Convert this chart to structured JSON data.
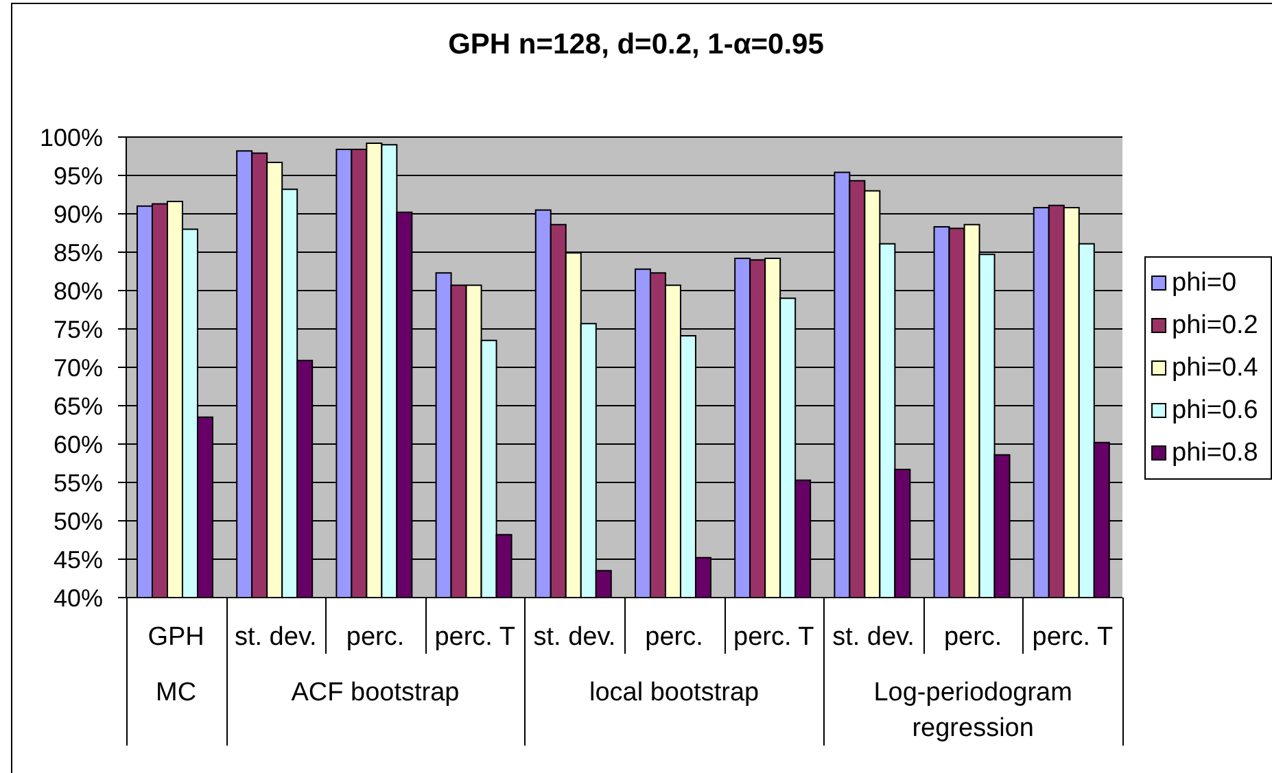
{
  "chart_data": {
    "type": "bar",
    "title": "GPH n=128, d=0.2, 1-α=0.95",
    "categories": [
      "GPH",
      "st. dev.",
      "perc.",
      "perc. T",
      "st. dev.",
      "perc.",
      "perc. T",
      "st. dev.",
      "perc.",
      "perc. T"
    ],
    "series": [
      {
        "name": "phi=0",
        "color": "#9999ff",
        "values": [
          91.0,
          98.2,
          98.4,
          82.3,
          90.5,
          82.8,
          84.2,
          95.4,
          88.3,
          90.8
        ]
      },
      {
        "name": "phi=0.2",
        "color": "#993366",
        "values": [
          91.3,
          97.9,
          98.4,
          80.7,
          88.6,
          82.3,
          84.0,
          94.3,
          88.1,
          91.1
        ]
      },
      {
        "name": "phi=0.4",
        "color": "#ffffcc",
        "values": [
          91.6,
          96.7,
          99.2,
          80.7,
          84.9,
          80.7,
          84.2,
          93.0,
          88.6,
          90.8
        ]
      },
      {
        "name": "phi=0.6",
        "color": "#ccffff",
        "values": [
          88.0,
          93.2,
          99.0,
          73.5,
          75.7,
          74.1,
          79.0,
          86.1,
          84.7,
          86.1
        ]
      },
      {
        "name": "phi=0.8",
        "color": "#660066",
        "values": [
          63.5,
          70.9,
          90.2,
          48.2,
          43.5,
          45.2,
          55.3,
          56.7,
          58.6,
          60.2
        ]
      }
    ],
    "ylim": [
      40,
      100
    ],
    "yticks": [
      {
        "value": 40,
        "label": "40%"
      },
      {
        "value": 45,
        "label": "45%"
      },
      {
        "value": 50,
        "label": "50%"
      },
      {
        "value": 55,
        "label": "55%"
      },
      {
        "value": 60,
        "label": "60%"
      },
      {
        "value": 65,
        "label": "65%"
      },
      {
        "value": 70,
        "label": "70%"
      },
      {
        "value": 75,
        "label": "75%"
      },
      {
        "value": 80,
        "label": "80%"
      },
      {
        "value": 85,
        "label": "85%"
      },
      {
        "value": 90,
        "label": "90%"
      },
      {
        "value": 95,
        "label": "95%"
      },
      {
        "value": 100,
        "label": "100%"
      }
    ],
    "grid": "y",
    "legend": "right",
    "annotations": [
      "MC",
      "ACF bootstrap",
      "local bootstrap",
      "Log-periodogram regression"
    ]
  }
}
